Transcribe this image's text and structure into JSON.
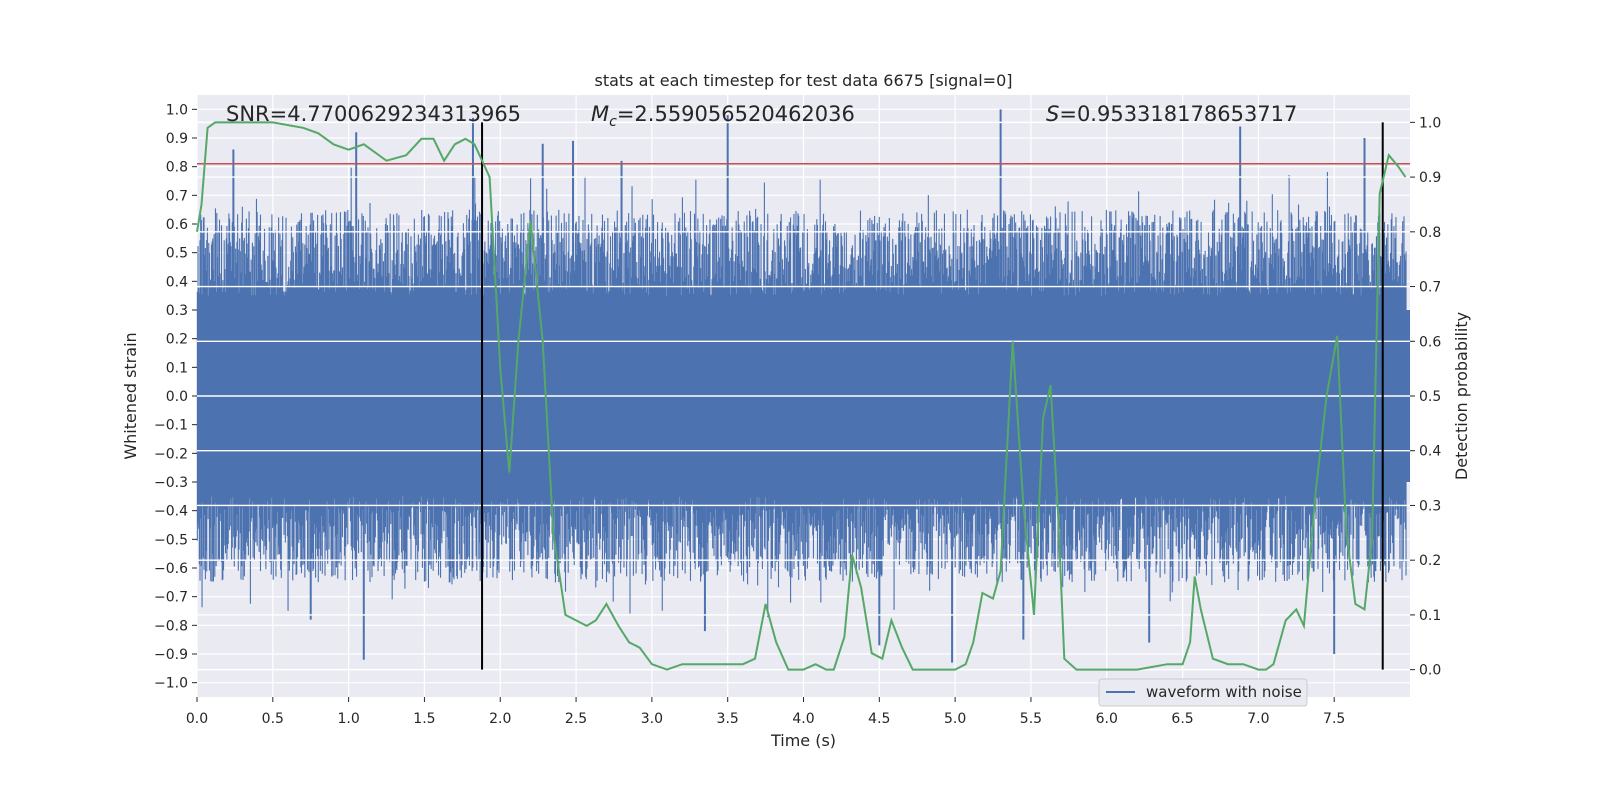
{
  "chart_data": {
    "type": "line",
    "title": "stats at each timestep for test data 6675 [signal=0]",
    "xlabel": "Time (s)",
    "ylabel": "Whitened strain",
    "y2label": "Detection probability",
    "xlim": [
      0.0,
      8.0
    ],
    "ylim": [
      -1.05,
      1.05
    ],
    "y2lim": [
      -0.05,
      1.05
    ],
    "xticks": [
      0.0,
      0.5,
      1.0,
      1.5,
      2.0,
      2.5,
      3.0,
      3.5,
      4.0,
      4.5,
      5.0,
      5.5,
      6.0,
      6.5,
      7.0,
      7.5
    ],
    "yticks": [
      1.0,
      0.9,
      0.8,
      0.7,
      0.6,
      0.5,
      0.4,
      0.3,
      0.2,
      0.1,
      0.0,
      -0.1,
      -0.2,
      -0.3,
      -0.4,
      -0.5,
      -0.6,
      -0.7,
      -0.8,
      -0.9,
      -1.0
    ],
    "y2ticks": [
      1.0,
      0.9,
      0.8,
      0.7,
      0.6,
      0.5,
      0.4,
      0.3,
      0.2,
      0.1,
      0.0
    ],
    "grid": true,
    "legend": {
      "entries": [
        "waveform with noise"
      ],
      "placement": "lower-right"
    },
    "annotations": {
      "snr": "SNR=4.7700629234313965",
      "mc_symbol": "M",
      "mc_subscript": "c",
      "mc_value": "=2.559056520462036",
      "s_symbol": "S",
      "s_value": "=0.953318178653717"
    },
    "vertical_lines_s": [
      1.88,
      7.82
    ],
    "threshold_line_strain": 0.81,
    "series": [
      {
        "name": "waveform with noise",
        "axis": "left",
        "color": "#4c72b0",
        "style": "noise-waveform",
        "envelope_strain": [
          0.35,
          0.65
        ],
        "spikes": [
          {
            "t": 0.24,
            "v": 0.86
          },
          {
            "t": 1.05,
            "v": 0.92
          },
          {
            "t": 1.82,
            "v": 0.97
          },
          {
            "t": 2.28,
            "v": 0.88
          },
          {
            "t": 2.48,
            "v": 0.89
          },
          {
            "t": 3.5,
            "v": 0.98
          },
          {
            "t": 2.8,
            "v": 0.82
          },
          {
            "t": 5.3,
            "v": 1.0
          },
          {
            "t": 6.88,
            "v": 0.94
          },
          {
            "t": 7.7,
            "v": 0.9
          },
          {
            "t": 1.1,
            "v": -0.92
          },
          {
            "t": 4.98,
            "v": -0.93
          },
          {
            "t": 7.5,
            "v": -0.9
          },
          {
            "t": 0.75,
            "v": -0.78
          },
          {
            "t": 3.35,
            "v": -0.82
          },
          {
            "t": 5.45,
            "v": -0.85
          },
          {
            "t": 6.28,
            "v": -0.86
          },
          {
            "t": 4.5,
            "v": -0.87
          }
        ]
      },
      {
        "name": "Detection probability",
        "axis": "right",
        "color": "#55a868",
        "x": [
          0.0,
          0.03,
          0.07,
          0.12,
          0.2,
          0.3,
          0.5,
          0.7,
          0.8,
          0.9,
          1.0,
          1.1,
          1.25,
          1.38,
          1.48,
          1.56,
          1.63,
          1.7,
          1.77,
          1.83,
          1.88,
          1.93,
          2.0,
          2.06,
          2.12,
          2.2,
          2.28,
          2.35,
          2.43,
          2.5,
          2.57,
          2.63,
          2.7,
          2.78,
          2.85,
          2.92,
          3.0,
          3.1,
          3.2,
          3.3,
          3.4,
          3.5,
          3.6,
          3.68,
          3.75,
          3.82,
          3.9,
          4.0,
          4.08,
          4.15,
          4.2,
          4.27,
          4.32,
          4.38,
          4.45,
          4.52,
          4.58,
          4.65,
          4.72,
          4.8,
          4.9,
          5.0,
          5.07,
          5.12,
          5.18,
          5.25,
          5.3,
          5.38,
          5.45,
          5.52,
          5.58,
          5.63,
          5.68,
          5.72,
          5.8,
          5.9,
          6.0,
          6.2,
          6.4,
          6.5,
          6.55,
          6.58,
          6.62,
          6.7,
          6.8,
          6.9,
          7.0,
          7.05,
          7.1,
          7.18,
          7.25,
          7.3,
          7.38,
          7.45,
          7.52,
          7.58,
          7.64,
          7.7,
          7.75,
          7.8,
          7.86,
          7.92,
          7.97
        ],
        "y": [
          0.8,
          0.85,
          0.99,
          1.0,
          1.0,
          1.0,
          1.0,
          0.99,
          0.98,
          0.96,
          0.95,
          0.96,
          0.93,
          0.94,
          0.97,
          0.97,
          0.93,
          0.96,
          0.97,
          0.96,
          0.93,
          0.9,
          0.55,
          0.36,
          0.6,
          0.82,
          0.6,
          0.25,
          0.1,
          0.09,
          0.08,
          0.09,
          0.12,
          0.08,
          0.05,
          0.04,
          0.01,
          0.0,
          0.01,
          0.01,
          0.01,
          0.01,
          0.01,
          0.02,
          0.12,
          0.05,
          0.0,
          0.0,
          0.01,
          0.0,
          0.0,
          0.06,
          0.21,
          0.15,
          0.03,
          0.02,
          0.09,
          0.04,
          0.0,
          0.0,
          0.0,
          0.0,
          0.01,
          0.05,
          0.14,
          0.13,
          0.18,
          0.6,
          0.3,
          0.1,
          0.46,
          0.52,
          0.28,
          0.02,
          0.0,
          0.0,
          0.0,
          0.0,
          0.01,
          0.01,
          0.05,
          0.17,
          0.11,
          0.02,
          0.01,
          0.01,
          0.0,
          0.0,
          0.01,
          0.09,
          0.11,
          0.08,
          0.33,
          0.5,
          0.61,
          0.25,
          0.12,
          0.11,
          0.24,
          0.87,
          0.94,
          0.92,
          0.9
        ]
      }
    ]
  }
}
